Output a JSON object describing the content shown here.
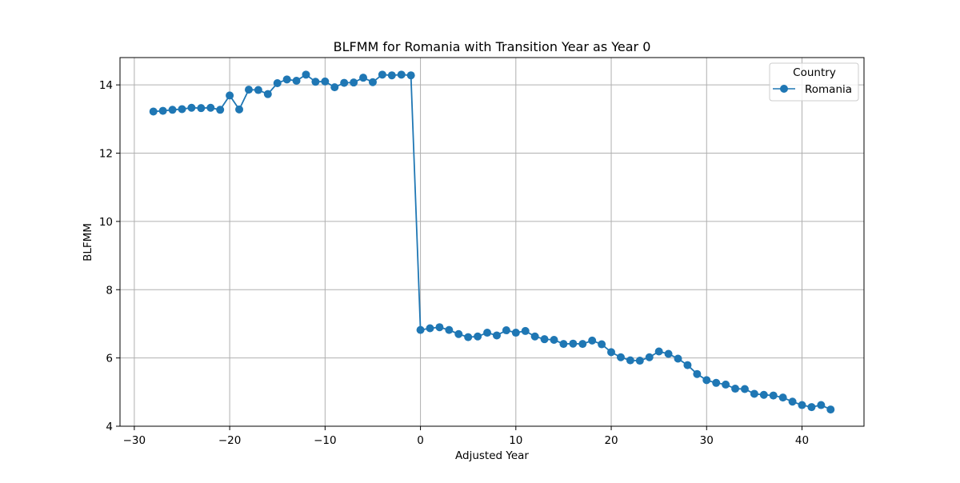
{
  "chart_data": {
    "type": "line",
    "title": "BLFMM for Romania with Transition Year as Year 0",
    "xlabel": "Adjusted Year",
    "ylabel": "BLFMM",
    "xlim": [
      -31.5,
      46.5
    ],
    "ylim": [
      4,
      14.8
    ],
    "xticks": [
      -30,
      -20,
      -10,
      0,
      10,
      20,
      30,
      40
    ],
    "yticks": [
      4,
      6,
      8,
      10,
      12,
      14
    ],
    "grid": true,
    "legend": {
      "title": "Country",
      "position": "top-right"
    },
    "series": [
      {
        "name": "Romania",
        "color": "#1f77b4",
        "marker": "circle",
        "x": [
          -28,
          -27,
          -26,
          -25,
          -24,
          -23,
          -22,
          -21,
          -20,
          -19,
          -18,
          -17,
          -16,
          -15,
          -14,
          -13,
          -12,
          -11,
          -10,
          -9,
          -8,
          -7,
          -6,
          -5,
          -4,
          -3,
          -2,
          -1,
          0,
          1,
          2,
          3,
          4,
          5,
          6,
          7,
          8,
          9,
          10,
          11,
          12,
          13,
          14,
          15,
          16,
          17,
          18,
          19,
          20,
          21,
          22,
          23,
          24,
          25,
          26,
          27,
          28,
          29,
          30,
          31,
          32,
          33,
          34,
          35,
          36,
          37,
          38,
          39,
          40,
          41,
          42,
          43
        ],
        "y": [
          13.22,
          13.24,
          13.27,
          13.29,
          13.33,
          13.32,
          13.33,
          13.27,
          13.69,
          13.28,
          13.86,
          13.85,
          13.73,
          14.05,
          14.16,
          14.12,
          14.3,
          14.09,
          14.1,
          13.93,
          14.06,
          14.07,
          14.21,
          14.08,
          14.3,
          14.28,
          14.3,
          14.28,
          6.82,
          6.87,
          6.9,
          6.82,
          6.7,
          6.61,
          6.63,
          6.74,
          6.66,
          6.81,
          6.74,
          6.79,
          6.63,
          6.55,
          6.53,
          6.41,
          6.42,
          6.41,
          6.51,
          6.4,
          6.17,
          6.02,
          5.93,
          5.92,
          6.02,
          6.19,
          6.12,
          5.98,
          5.79,
          5.53,
          5.35,
          5.27,
          5.22,
          5.1,
          5.09,
          4.95,
          4.92,
          4.9,
          4.84,
          4.72,
          4.62,
          4.56,
          4.62,
          4.49
        ]
      }
    ]
  }
}
